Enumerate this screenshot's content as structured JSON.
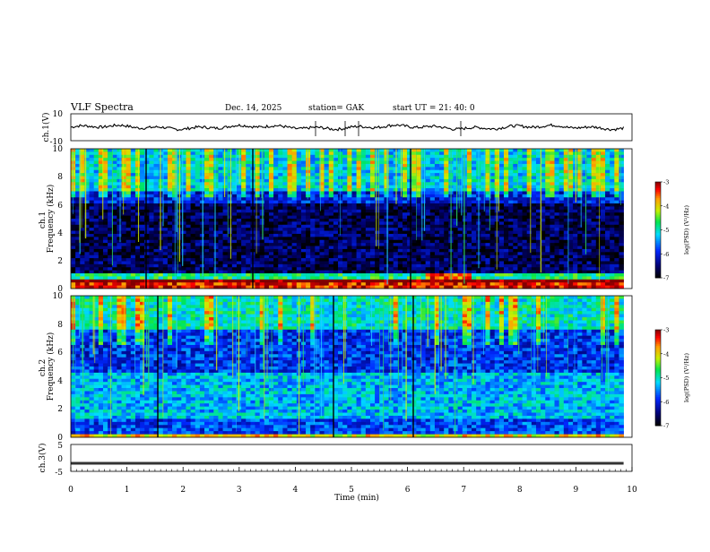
{
  "header": {
    "title": "VLF  Spectra",
    "date": "Dec. 14,  2025",
    "station": "station= GAK",
    "start_ut": "start  UT  =    21: 40: 0"
  },
  "chart_data": [
    {
      "type": "line",
      "panel": "ch1-waveform",
      "ylabel": "ch.1(V)",
      "ylim": [
        -10,
        10
      ],
      "yticks": [
        "10",
        "-10"
      ],
      "xlim": [
        0,
        10
      ],
      "baseline_level": 0
    },
    {
      "type": "heatmap",
      "panel": "ch1-spectrogram",
      "ylabel": "ch.1\nFrequency  (kHz)",
      "ylim": [
        0,
        10
      ],
      "yticks": [
        "0",
        "2",
        "4",
        "6",
        "8",
        "10"
      ],
      "xlim": [
        0,
        9.85
      ],
      "colorbar": {
        "label": "log(PSD) (V²/Hz)",
        "range": [
          -7,
          -3
        ],
        "ticks": [
          "-3",
          "-4",
          "-5",
          "-6",
          "-7"
        ]
      }
    },
    {
      "type": "heatmap",
      "panel": "ch2-spectrogram",
      "ylabel": "ch.2\nFrequency  (kHz)",
      "ylim": [
        0,
        10
      ],
      "yticks": [
        "0",
        "2",
        "4",
        "6",
        "8",
        "10"
      ],
      "xlim": [
        0,
        9.85
      ],
      "colorbar": {
        "label": "log(PSD) (V²/Hz)",
        "range": [
          -7,
          -3
        ],
        "ticks": [
          "-3",
          "-4",
          "-5",
          "-6",
          "-7"
        ]
      }
    },
    {
      "type": "line",
      "panel": "ch3-waveform",
      "ylabel": "ch.3(V)",
      "ylim": [
        -5,
        5
      ],
      "yticks": [
        "5",
        "0",
        "-5"
      ],
      "baseline_level": -2,
      "xlabel": "Time  (min)",
      "xlim": [
        0,
        10
      ],
      "xticks": [
        "0",
        "1",
        "2",
        "3",
        "4",
        "5",
        "6",
        "7",
        "8",
        "9",
        "10"
      ]
    }
  ]
}
